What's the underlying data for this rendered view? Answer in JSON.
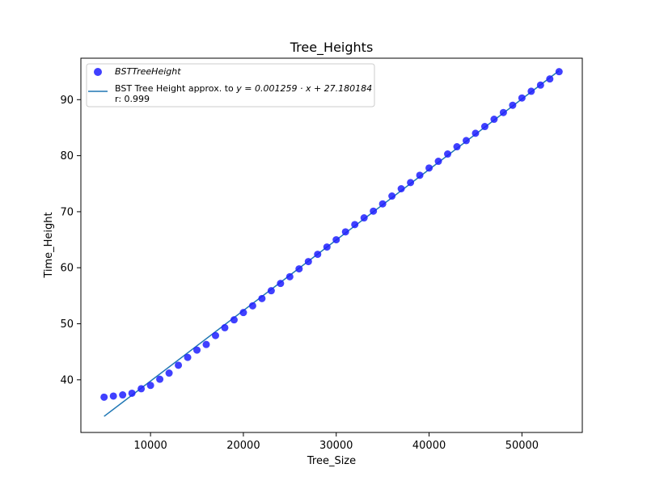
{
  "chart_data": {
    "type": "scatter",
    "title": "Tree_Heights",
    "xlabel": "Tree_Size",
    "ylabel": "Time_Height",
    "xlim": [
      2500,
      56500
    ],
    "ylim": [
      30.6,
      97.4
    ],
    "xticks": [
      10000,
      20000,
      30000,
      40000,
      50000
    ],
    "yticks": [
      40,
      50,
      60,
      70,
      80,
      90
    ],
    "xtick_labels": [
      "10000",
      "20000",
      "30000",
      "40000",
      "50000"
    ],
    "ytick_labels": [
      "40",
      "50",
      "60",
      "70",
      "80",
      "90"
    ],
    "grid": false,
    "legend_position": "top-left",
    "series": [
      {
        "name": "BSTTreeHeight",
        "kind": "scatter",
        "color": "#1f1fff",
        "x": [
          5000,
          6000,
          7000,
          8000,
          9000,
          10000,
          11000,
          12000,
          13000,
          14000,
          15000,
          16000,
          17000,
          18000,
          19000,
          20000,
          21000,
          22000,
          23000,
          24000,
          25000,
          26000,
          27000,
          28000,
          29000,
          30000,
          31000,
          32000,
          33000,
          34000,
          35000,
          36000,
          37000,
          38000,
          39000,
          40000,
          41000,
          42000,
          43000,
          44000,
          45000,
          46000,
          47000,
          48000,
          49000,
          50000,
          51000,
          52000,
          53000,
          54000
        ],
        "y": [
          36.9,
          37.1,
          37.3,
          37.6,
          38.4,
          39.0,
          40.1,
          41.2,
          42.6,
          44.0,
          45.3,
          46.3,
          47.9,
          49.3,
          50.7,
          52.0,
          53.2,
          54.5,
          55.9,
          57.2,
          58.4,
          59.8,
          61.1,
          62.4,
          63.7,
          65.0,
          66.4,
          67.7,
          68.9,
          70.1,
          71.4,
          72.8,
          74.1,
          75.2,
          76.5,
          77.8,
          79.0,
          80.3,
          81.6,
          82.7,
          84.0,
          85.2,
          86.5,
          87.7,
          89.0,
          90.3,
          91.5,
          92.6,
          93.7,
          95.0
        ]
      },
      {
        "name_prefix": "BST Tree Height approx. to ",
        "name_formula": "y = 0.001259 · x + 27.180184",
        "name_r": "r: 0.999",
        "kind": "line",
        "color": "#1f77b4",
        "slope": 0.001259,
        "intercept": 27.180184,
        "x_range": [
          5000,
          54000
        ]
      }
    ]
  }
}
